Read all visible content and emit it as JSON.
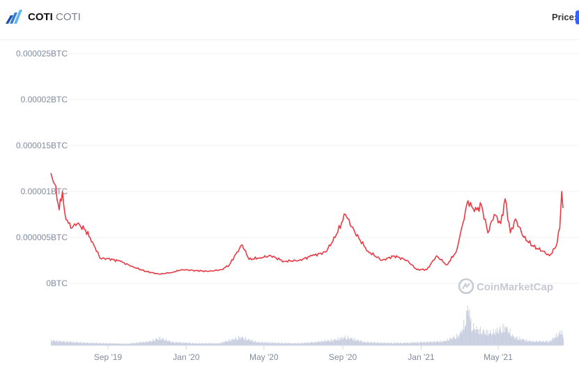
{
  "header": {
    "coin_name": "COTI",
    "coin_symbol": "COTI",
    "price_label": "Price:",
    "logo_icon": "coti-logo-icon"
  },
  "watermark": "CoinMarketCap",
  "colors": {
    "line": "#ea3943",
    "volume": "#c9cfe0",
    "grid": "#eff2f5",
    "accent": "#3861fb"
  },
  "chart_data": {
    "type": "line",
    "title": "",
    "xlabel": "",
    "ylabel": "",
    "x_ticks": [
      "Sep '19",
      "Jan '20",
      "May '20",
      "Sep '20",
      "Jan '21",
      "May '21"
    ],
    "x_tick_dates": [
      "2019-09-01",
      "2020-01-01",
      "2020-05-01",
      "2020-09-01",
      "2021-01-01",
      "2021-05-01"
    ],
    "y_ticks": [
      "0BTC",
      "0.000005BTC",
      "0.00001BTC",
      "0.000015BTC",
      "0.00002BTC",
      "0.000025BTC"
    ],
    "y_tick_values": [
      0,
      5e-06,
      1e-05,
      1.5e-05,
      2e-05,
      2.5e-05
    ],
    "ylim": [
      0,
      2.5e-05
    ],
    "xlim": [
      "2019-06-04",
      "2021-08-10"
    ],
    "grid": true,
    "series": [
      {
        "values": [
          [
            "2019-06-04",
            1.2e-05
          ],
          [
            "2019-06-10",
            1.08e-05
          ],
          [
            "2019-06-17",
            8e-06
          ],
          [
            "2019-06-22",
            1e-05
          ],
          [
            "2019-06-26",
            7.5e-06
          ],
          [
            "2019-07-05",
            6e-06
          ],
          [
            "2019-07-15",
            6.5e-06
          ],
          [
            "2019-07-28",
            5.8e-06
          ],
          [
            "2019-08-08",
            4.5e-06
          ],
          [
            "2019-08-20",
            2.7e-06
          ],
          [
            "2019-09-01",
            2.7e-06
          ],
          [
            "2019-09-20",
            2.4e-06
          ],
          [
            "2019-10-10",
            1.8e-06
          ],
          [
            "2019-10-30",
            1.3e-06
          ],
          [
            "2019-11-20",
            1e-06
          ],
          [
            "2019-12-10",
            1.2e-06
          ],
          [
            "2019-12-25",
            1.5e-06
          ],
          [
            "2020-01-15",
            1.4e-06
          ],
          [
            "2020-02-05",
            1.3e-06
          ],
          [
            "2020-02-25",
            1.5e-06
          ],
          [
            "2020-03-08",
            2e-06
          ],
          [
            "2020-03-20",
            3.4e-06
          ],
          [
            "2020-03-28",
            4.2e-06
          ],
          [
            "2020-04-08",
            2.6e-06
          ],
          [
            "2020-04-25",
            2.8e-06
          ],
          [
            "2020-05-12",
            3e-06
          ],
          [
            "2020-06-01",
            2.4e-06
          ],
          [
            "2020-06-25",
            2.5e-06
          ],
          [
            "2020-07-15",
            3e-06
          ],
          [
            "2020-08-05",
            3.4e-06
          ],
          [
            "2020-08-20",
            5e-06
          ],
          [
            "2020-08-30",
            6.6e-06
          ],
          [
            "2020-09-05",
            7.5e-06
          ],
          [
            "2020-09-20",
            5.5e-06
          ],
          [
            "2020-10-10",
            3.5e-06
          ],
          [
            "2020-11-01",
            2.5e-06
          ],
          [
            "2020-11-20",
            3e-06
          ],
          [
            "2020-12-10",
            2.5e-06
          ],
          [
            "2020-12-25",
            1.5e-06
          ],
          [
            "2021-01-10",
            1.5e-06
          ],
          [
            "2021-01-25",
            3e-06
          ],
          [
            "2021-02-10",
            2e-06
          ],
          [
            "2021-02-25",
            3.5e-06
          ],
          [
            "2021-03-05",
            6e-06
          ],
          [
            "2021-03-15",
            9e-06
          ],
          [
            "2021-03-25",
            7.8e-06
          ],
          [
            "2021-04-05",
            8.5e-06
          ],
          [
            "2021-04-15",
            5.5e-06
          ],
          [
            "2021-04-25",
            7.5e-06
          ],
          [
            "2021-05-05",
            6.5e-06
          ],
          [
            "2021-05-12",
            9.2e-06
          ],
          [
            "2021-05-20",
            5.5e-06
          ],
          [
            "2021-05-28",
            7e-06
          ],
          [
            "2021-06-10",
            5e-06
          ],
          [
            "2021-06-25",
            4e-06
          ],
          [
            "2021-07-10",
            3.5e-06
          ],
          [
            "2021-07-20",
            3e-06
          ],
          [
            "2021-07-30",
            4e-06
          ],
          [
            "2021-08-05",
            6e-06
          ],
          [
            "2021-08-08",
            1e-05
          ],
          [
            "2021-08-10",
            8.2e-06
          ]
        ]
      }
    ],
    "volume_series": {
      "values": [
        [
          "2019-06-04",
          0.12
        ],
        [
          "2019-06-20",
          0.1
        ],
        [
          "2019-07-10",
          0.08
        ],
        [
          "2019-08-01",
          0.06
        ],
        [
          "2019-09-01",
          0.05
        ],
        [
          "2019-10-01",
          0.04
        ],
        [
          "2019-11-05",
          0.1
        ],
        [
          "2019-11-20",
          0.18
        ],
        [
          "2019-12-10",
          0.08
        ],
        [
          "2020-01-15",
          0.05
        ],
        [
          "2020-02-20",
          0.05
        ],
        [
          "2020-03-25",
          0.2
        ],
        [
          "2020-04-20",
          0.08
        ],
        [
          "2020-05-20",
          0.06
        ],
        [
          "2020-06-20",
          0.05
        ],
        [
          "2020-07-20",
          0.08
        ],
        [
          "2020-08-20",
          0.14
        ],
        [
          "2020-09-05",
          0.2
        ],
        [
          "2020-10-05",
          0.08
        ],
        [
          "2020-11-05",
          0.06
        ],
        [
          "2020-12-05",
          0.06
        ],
        [
          "2021-01-05",
          0.08
        ],
        [
          "2021-02-05",
          0.1
        ],
        [
          "2021-03-01",
          0.25
        ],
        [
          "2021-03-10",
          0.55
        ],
        [
          "2021-03-15",
          1.0
        ],
        [
          "2021-03-20",
          0.45
        ],
        [
          "2021-04-05",
          0.35
        ],
        [
          "2021-04-20",
          0.3
        ],
        [
          "2021-05-12",
          0.45
        ],
        [
          "2021-05-25",
          0.2
        ],
        [
          "2021-06-20",
          0.1
        ],
        [
          "2021-07-20",
          0.1
        ],
        [
          "2021-08-08",
          0.35
        ],
        [
          "2021-08-10",
          0.15
        ]
      ]
    }
  }
}
